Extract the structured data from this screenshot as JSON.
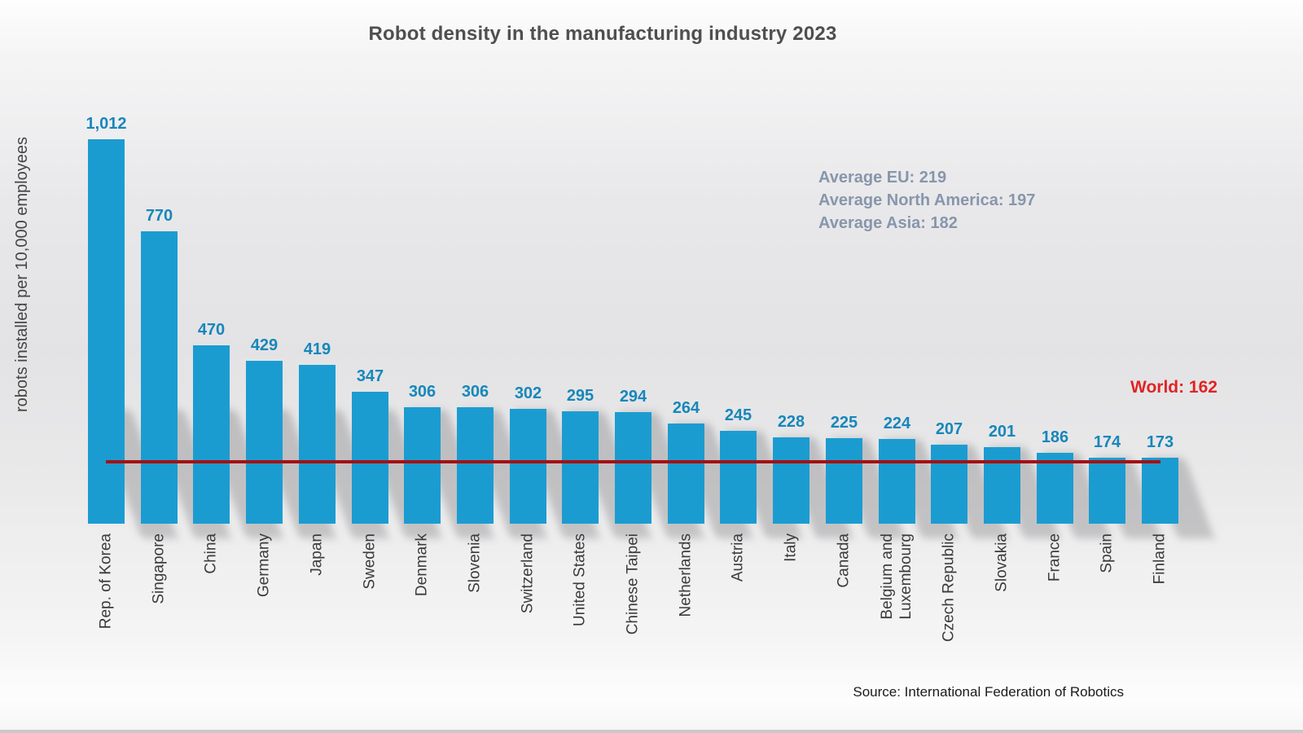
{
  "title": "Robot density in the manufacturing industry 2023",
  "ylabel": "robots installed per 10,000 employees",
  "source": "Source: International Federation of Robotics",
  "annotations": {
    "averages": [
      "Average EU: 219",
      "Average North America: 197",
      "Average Asia: 182"
    ],
    "world_label": "World: 162"
  },
  "colors": {
    "bar": "#1B9CD1",
    "value_label": "#1787BA",
    "world_line": "#A31114",
    "world_text": "#E02424",
    "averages_text": "#8796AB",
    "title_text": "#4F4F4F"
  },
  "chart_data": {
    "type": "bar",
    "title": "Robot density in the manufacturing industry 2023",
    "xlabel": "",
    "ylabel": "robots installed per 10,000 employees",
    "categories": [
      "Rep. of Korea",
      "Singapore",
      "China",
      "Germany",
      "Japan",
      "Sweden",
      "Denmark",
      "Slovenia",
      "Switzerland",
      "United States",
      "Chinese Taipei",
      "Netherlands",
      "Austria",
      "Italy",
      "Canada",
      "Belgium and\nLuxembourg",
      "Czech Republic",
      "Slovakia",
      "France",
      "Spain",
      "Finland"
    ],
    "values": [
      1012,
      770,
      470,
      429,
      419,
      347,
      306,
      306,
      302,
      295,
      294,
      264,
      245,
      228,
      225,
      224,
      207,
      201,
      186,
      174,
      173
    ],
    "value_labels": [
      "1,012",
      "770",
      "470",
      "429",
      "419",
      "347",
      "306",
      "306",
      "302",
      "295",
      "294",
      "264",
      "245",
      "228",
      "225",
      "224",
      "207",
      "201",
      "186",
      "174",
      "173"
    ],
    "reference_line": {
      "label": "World",
      "value": 162
    },
    "ylim": [
      0,
      1100
    ],
    "grid": false,
    "legend": null
  }
}
